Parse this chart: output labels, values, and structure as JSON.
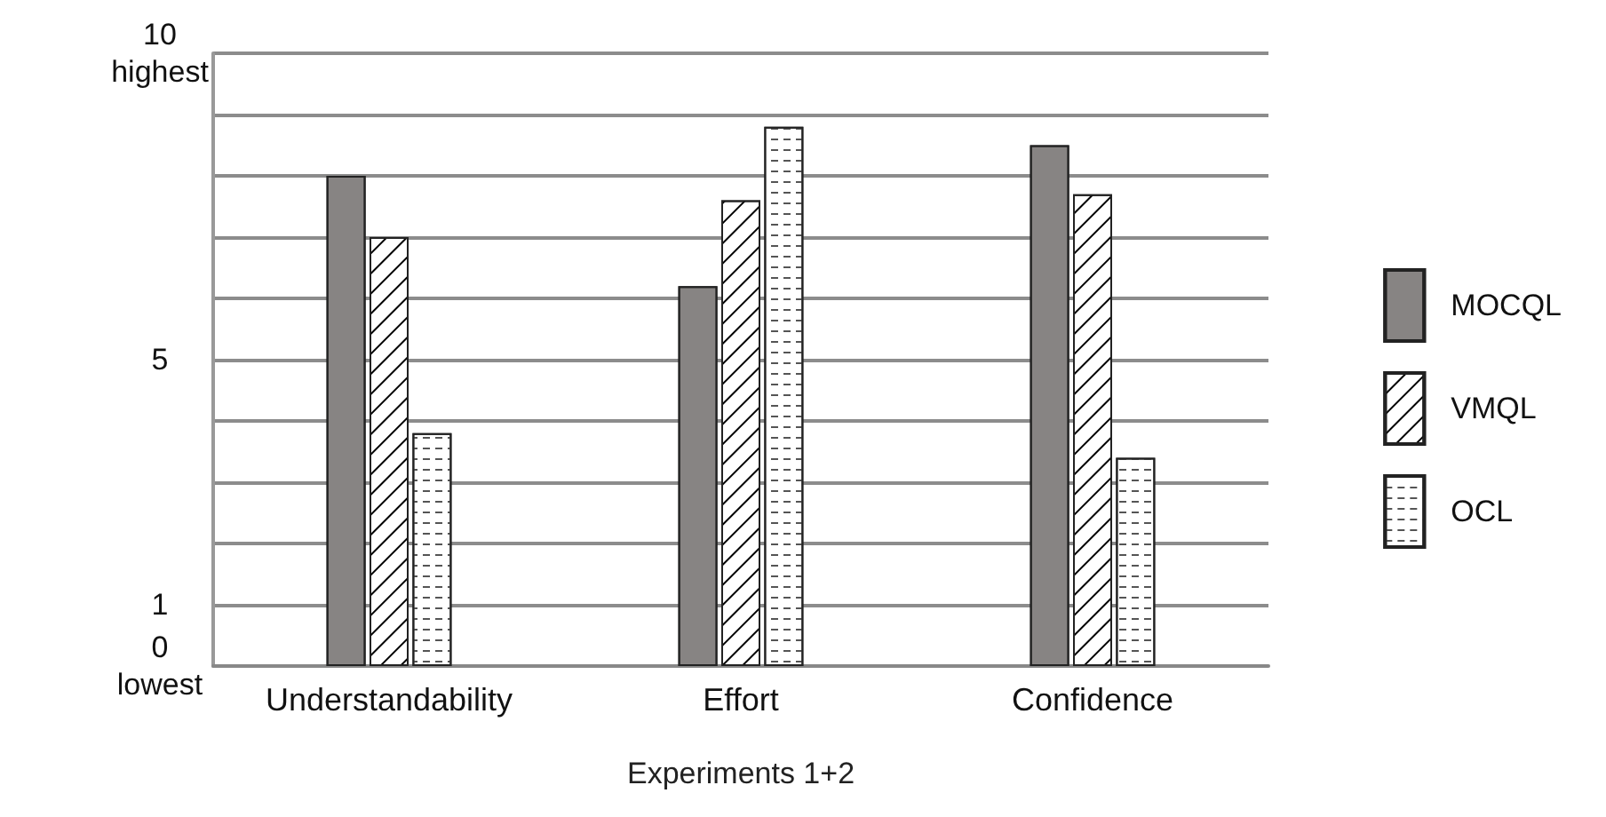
{
  "chart_data": {
    "type": "bar",
    "xlabel": "Experiments 1+2",
    "categories": [
      "Understandability",
      "Effort",
      "Confidence"
    ],
    "series": [
      {
        "name": "MOCQL",
        "color": "#878483",
        "values": [
          8.0,
          6.2,
          8.5
        ]
      },
      {
        "name": "VMQL",
        "color": "#ffffff",
        "values": [
          7.0,
          7.6,
          7.7
        ]
      },
      {
        "name": "OCL",
        "color": "#ffffff",
        "values": [
          3.8,
          8.8,
          3.4
        ]
      }
    ],
    "ylim": [
      0,
      10
    ],
    "yticks": [
      {
        "value": 0,
        "label": "0\nlowest"
      },
      {
        "value": 1,
        "label": "1"
      },
      {
        "value": 2,
        "label": null
      },
      {
        "value": 3,
        "label": null
      },
      {
        "value": 4,
        "label": null
      },
      {
        "value": 5,
        "label": "5"
      },
      {
        "value": 6,
        "label": null
      },
      {
        "value": 7,
        "label": null
      },
      {
        "value": 8,
        "label": null
      },
      {
        "value": 9,
        "label": null
      },
      {
        "value": 10,
        "label": "10\nhighest"
      }
    ],
    "grid": "y",
    "legend": "right"
  }
}
